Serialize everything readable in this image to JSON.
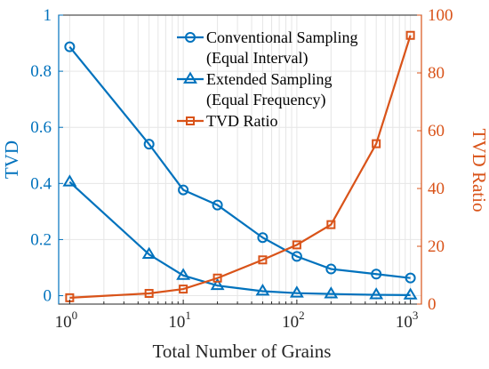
{
  "colors": {
    "left_axis": "#0072BD",
    "right_axis": "#D95319",
    "conventional": "#0072BD",
    "extended": "#0072BD",
    "ratio": "#D95319",
    "grid": "#e6e6e6",
    "frame": "#262626"
  },
  "chart_data": {
    "type": "line",
    "title": "",
    "xlabel": "Total Number of Grains",
    "ylabel_left": "TVD",
    "ylabel_right": "TVD Ratio",
    "x_scale": "log",
    "xlim": [
      0.8,
      1250
    ],
    "ylim_left": [
      -0.03,
      1.0
    ],
    "ylim_right": [
      0,
      100
    ],
    "x_ticks": [
      {
        "value": 1,
        "base": "10",
        "exp": "0"
      },
      {
        "value": 10,
        "base": "10",
        "exp": "1"
      },
      {
        "value": 100,
        "base": "10",
        "exp": "2"
      },
      {
        "value": 1000,
        "base": "10",
        "exp": "3"
      }
    ],
    "y_left_ticks": [
      {
        "value": 0,
        "label": "0"
      },
      {
        "value": 0.2,
        "label": "0.2"
      },
      {
        "value": 0.4,
        "label": "0.4"
      },
      {
        "value": 0.6,
        "label": "0.6"
      },
      {
        "value": 0.8,
        "label": "0.8"
      },
      {
        "value": 1,
        "label": "1"
      }
    ],
    "y_right_ticks": [
      {
        "value": 0,
        "label": "0"
      },
      {
        "value": 20,
        "label": "20"
      },
      {
        "value": 40,
        "label": "40"
      },
      {
        "value": 60,
        "label": "60"
      },
      {
        "value": 80,
        "label": "80"
      },
      {
        "value": 100,
        "label": "100"
      }
    ],
    "grid": true,
    "legend_position": "top-right",
    "x": [
      1,
      5,
      10,
      20,
      50,
      100,
      200,
      500,
      1000
    ],
    "series": [
      {
        "name_line1": "Conventional Sampling",
        "name_line2": "(Equal Interval)",
        "axis": "left",
        "marker": "circle",
        "values": [
          0.887,
          0.54,
          0.377,
          0.323,
          0.207,
          0.14,
          0.095,
          0.077,
          0.063
        ]
      },
      {
        "name_line1": "Extended Sampling",
        "name_line2": "(Equal Frequency)",
        "axis": "left",
        "marker": "triangle",
        "values": [
          0.405,
          0.147,
          0.072,
          0.036,
          0.016,
          0.009,
          0.006,
          0.003,
          0.002
        ]
      },
      {
        "name_line1": "TVD Ratio",
        "name_line2": "",
        "axis": "right",
        "marker": "square",
        "values": [
          2.2,
          3.7,
          5.2,
          9.0,
          15.3,
          20.5,
          27.5,
          55.5,
          93.0
        ]
      }
    ]
  }
}
